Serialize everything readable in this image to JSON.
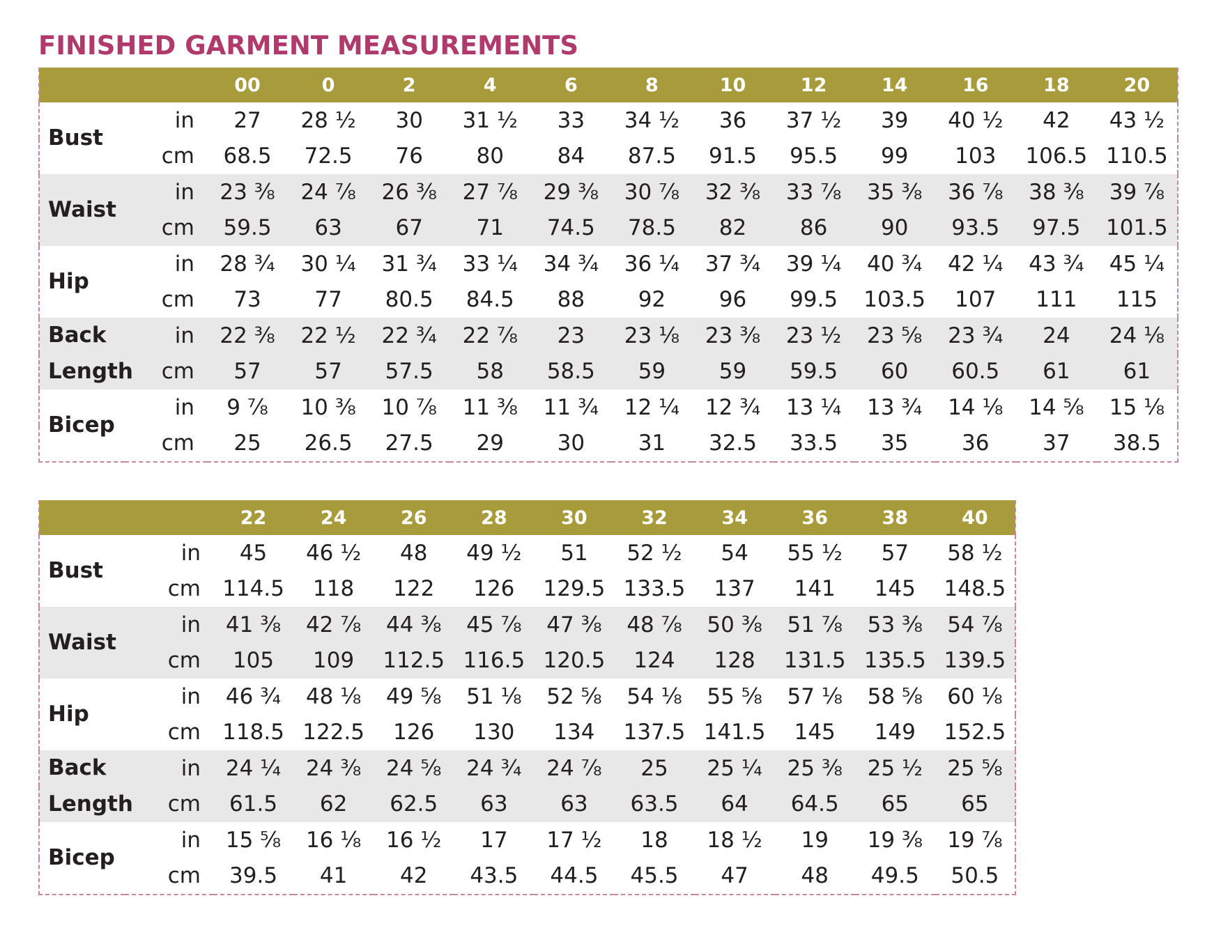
{
  "title": "FINISHED GARMENT MEASUREMENTS",
  "tables": [
    {
      "sizes": [
        "00",
        "0",
        "2",
        "4",
        "6",
        "8",
        "10",
        "12",
        "14",
        "16",
        "18",
        "20"
      ],
      "rows": [
        {
          "measurement": [
            "Bust"
          ],
          "in": [
            "27",
            "28 ½",
            "30",
            "31 ½",
            "33",
            "34 ½",
            "36",
            "37 ½",
            "39",
            "40 ½",
            "42",
            "43 ½"
          ],
          "cm": [
            "68.5",
            "72.5",
            "76",
            "80",
            "84",
            "87.5",
            "91.5",
            "95.5",
            "99",
            "103",
            "106.5",
            "110.5"
          ]
        },
        {
          "measurement": [
            "Waist"
          ],
          "in": [
            "23 ⅜",
            "24 ⅞",
            "26 ⅜",
            "27 ⅞",
            "29 ⅜",
            "30 ⅞",
            "32 ⅜",
            "33 ⅞",
            "35 ⅜",
            "36 ⅞",
            "38 ⅜",
            "39 ⅞"
          ],
          "cm": [
            "59.5",
            "63",
            "67",
            "71",
            "74.5",
            "78.5",
            "82",
            "86",
            "90",
            "93.5",
            "97.5",
            "101.5"
          ]
        },
        {
          "measurement": [
            "Hip"
          ],
          "in": [
            "28 ¾",
            "30 ¼",
            "31 ¾",
            "33 ¼",
            "34 ¾",
            "36 ¼",
            "37 ¾",
            "39 ¼",
            "40 ¾",
            "42 ¼",
            "43 ¾",
            "45 ¼"
          ],
          "cm": [
            "73",
            "77",
            "80.5",
            "84.5",
            "88",
            "92",
            "96",
            "99.5",
            "103.5",
            "107",
            "111",
            "115"
          ]
        },
        {
          "measurement": [
            "Back",
            "Length"
          ],
          "in": [
            "22 ⅜",
            "22 ½",
            "22 ¾",
            "22 ⅞",
            "23",
            "23 ⅛",
            "23 ⅜",
            "23 ½",
            "23 ⅝",
            "23 ¾",
            "24",
            "24 ⅛"
          ],
          "cm": [
            "57",
            "57",
            "57.5",
            "58",
            "58.5",
            "59",
            "59",
            "59.5",
            "60",
            "60.5",
            "61",
            "61"
          ]
        },
        {
          "measurement": [
            "Bicep"
          ],
          "in": [
            "9 ⅞",
            "10 ⅜",
            "10 ⅞",
            "11 ⅜",
            "11 ¾",
            "12 ¼",
            "12 ¾",
            "13 ¼",
            "13 ¾",
            "14 ⅛",
            "14 ⅝",
            "15 ⅛"
          ],
          "cm": [
            "25",
            "26.5",
            "27.5",
            "29",
            "30",
            "31",
            "32.5",
            "33.5",
            "35",
            "36",
            "37",
            "38.5"
          ]
        }
      ]
    },
    {
      "sizes": [
        "22",
        "24",
        "26",
        "28",
        "30",
        "32",
        "34",
        "36",
        "38",
        "40"
      ],
      "rows": [
        {
          "measurement": [
            "Bust"
          ],
          "in": [
            "45",
            "46 ½",
            "48",
            "49 ½",
            "51",
            "52 ½",
            "54",
            "55 ½",
            "57",
            "58 ½"
          ],
          "cm": [
            "114.5",
            "118",
            "122",
            "126",
            "129.5",
            "133.5",
            "137",
            "141",
            "145",
            "148.5"
          ]
        },
        {
          "measurement": [
            "Waist"
          ],
          "in": [
            "41 ⅜",
            "42 ⅞",
            "44 ⅜",
            "45 ⅞",
            "47 ⅜",
            "48 ⅞",
            "50 ⅜",
            "51 ⅞",
            "53 ⅜",
            "54 ⅞"
          ],
          "cm": [
            "105",
            "109",
            "112.5",
            "116.5",
            "120.5",
            "124",
            "128",
            "131.5",
            "135.5",
            "139.5"
          ]
        },
        {
          "measurement": [
            "Hip"
          ],
          "in": [
            "46 ¾",
            "48 ⅛",
            "49 ⅝",
            "51 ⅛",
            "52 ⅝",
            "54 ⅛",
            "55 ⅝",
            "57 ⅛",
            "58 ⅝",
            "60 ⅛"
          ],
          "cm": [
            "118.5",
            "122.5",
            "126",
            "130",
            "134",
            "137.5",
            "141.5",
            "145",
            "149",
            "152.5"
          ]
        },
        {
          "measurement": [
            "Back",
            "Length"
          ],
          "in": [
            "24 ¼",
            "24 ⅜",
            "24 ⅝",
            "24 ¾",
            "24 ⅞",
            "25",
            "25 ¼",
            "25 ⅜",
            "25 ½",
            "25 ⅝"
          ],
          "cm": [
            "61.5",
            "62",
            "62.5",
            "63",
            "63",
            "63.5",
            "64",
            "64.5",
            "65",
            "65"
          ]
        },
        {
          "measurement": [
            "Bicep"
          ],
          "in": [
            "15 ⅝",
            "16 ⅛",
            "16 ½",
            "17",
            "17 ½",
            "18",
            "18 ½",
            "19",
            "19 ⅜",
            "19 ⅞"
          ],
          "cm": [
            "39.5",
            "41",
            "42",
            "43.5",
            "44.5",
            "45.5",
            "47",
            "48",
            "49.5",
            "50.5"
          ]
        }
      ]
    }
  ],
  "units": {
    "in": "in",
    "cm": "cm"
  },
  "colors": {
    "title": "#b03a6c",
    "header_band": "#a89b3b",
    "shaded_row": "#e8e8e9",
    "dashed_border": "#c9879f"
  }
}
